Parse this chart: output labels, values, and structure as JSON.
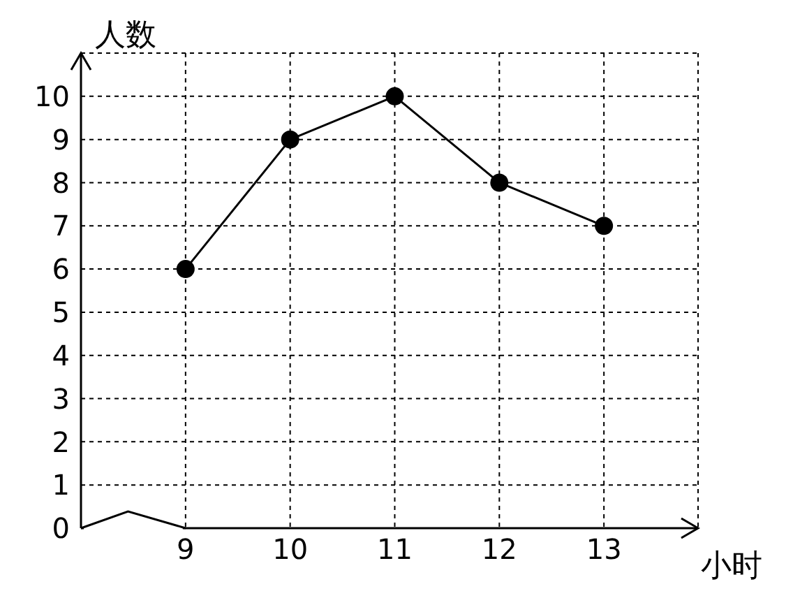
{
  "chart_data": {
    "type": "line",
    "xlabel": "小时",
    "ylabel": "人数",
    "x": [
      9,
      10,
      11,
      12,
      13
    ],
    "series": [
      {
        "color": "#000000",
        "values": [
          6,
          9,
          10,
          8,
          7
        ]
      }
    ],
    "xlim": [
      8,
      13.9
    ],
    "xticks": [
      9,
      10,
      11,
      12,
      13
    ],
    "ylim": [
      0,
      11
    ],
    "yticks": [
      0,
      1,
      2,
      3,
      4,
      5,
      6,
      7,
      8,
      9,
      10
    ],
    "grid": true,
    "marker": "circle",
    "line_style": "solid",
    "legend": false
  }
}
